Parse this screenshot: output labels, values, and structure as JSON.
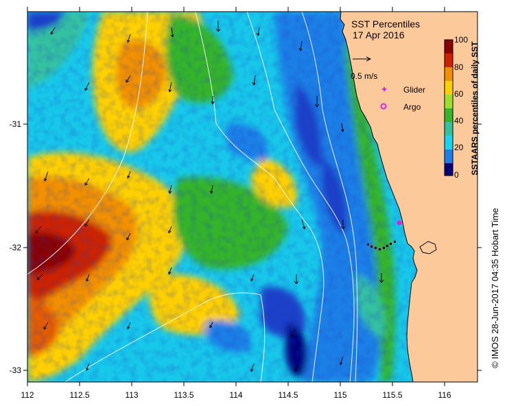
{
  "title": "SST Percentiles",
  "date": "17 Apr 2016",
  "vector_scale_label": "0.5 m/s",
  "legend": {
    "glider_label": "Glider",
    "argo_label": "Argo",
    "glider_color": "#e020e0",
    "argo_color": "#e020e0"
  },
  "colorbar": {
    "label": "SSTAARS percentiles of daily SST",
    "ticks": [
      "100",
      "80",
      "60",
      "40",
      "20",
      "0"
    ],
    "colors": [
      "#8b0000",
      "#cc2200",
      "#e65c00",
      "#f29000",
      "#ffd000",
      "#ffff30",
      "#9be02e",
      "#36b42c",
      "#36c2a0",
      "#18d4f0",
      "#1a7fe6",
      "#1a3fc8",
      "#00007a"
    ]
  },
  "axes": {
    "x_ticks": [
      "112",
      "112.5",
      "113",
      "113.5",
      "114",
      "114.5",
      "115",
      "115.5",
      "116"
    ],
    "y_ticks": [
      "-31",
      "-32",
      "-33"
    ]
  },
  "credit": "© IMOS 28-Jun-2017 04:35 Hobart Time"
}
